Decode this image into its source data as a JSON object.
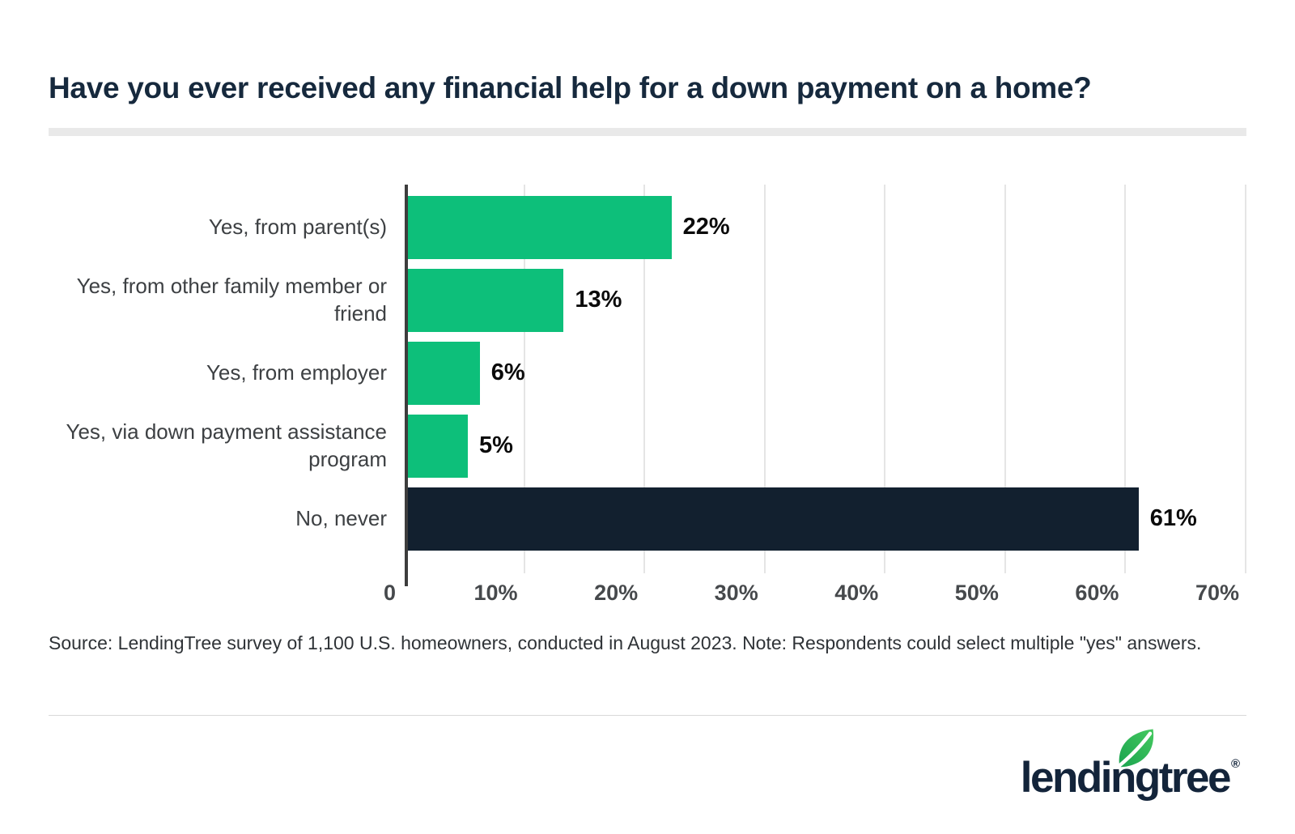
{
  "title": "Have you ever received any financial help for a down payment on a home?",
  "chart_data": {
    "type": "bar",
    "orientation": "horizontal",
    "title": "Have you ever received any financial help for a down payment on a home?",
    "categories": [
      "Yes, from parent(s)",
      "Yes, from other family member or friend",
      "Yes, from employer",
      "Yes, via down payment assistance program",
      "No, never"
    ],
    "values": [
      22,
      13,
      6,
      5,
      61
    ],
    "value_labels": [
      "22%",
      "13%",
      "6%",
      "5%",
      "61%"
    ],
    "bar_colors": [
      "#0dbf7a",
      "#0dbf7a",
      "#0dbf7a",
      "#0dbf7a",
      "#12202f"
    ],
    "xlim": [
      0,
      70
    ],
    "x_tick_values": [
      0,
      10,
      20,
      30,
      40,
      50,
      60,
      70
    ],
    "x_tick_labels": [
      "0",
      "10%",
      "20%",
      "30%",
      "40%",
      "50%",
      "60%",
      "70%"
    ],
    "grid": true,
    "legend": false,
    "xlabel": "",
    "ylabel": ""
  },
  "source_note": "Source: LendingTree survey of 1,100 U.S. homeowners, conducted in August 2023. Note: Respondents could select multiple \"yes\" answers.",
  "logo": {
    "wordmark": "lendingtree",
    "registered_mark": "®"
  },
  "colors": {
    "accent_green": "#0dbf7a",
    "dark_navy": "#12202f",
    "title_navy": "#16293d",
    "grid": "#e5e5e5",
    "axis": "#3d3d3d",
    "leaf_green_dark": "#1aa34f",
    "leaf_green_light": "#45c95f"
  }
}
